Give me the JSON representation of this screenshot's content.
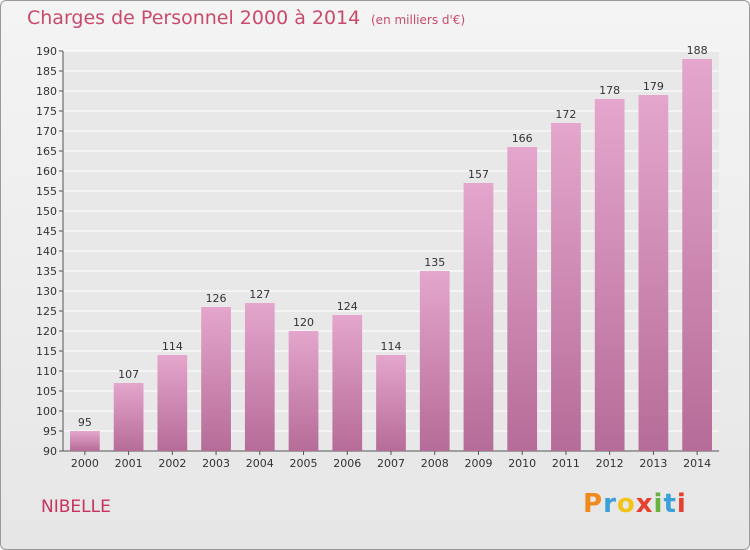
{
  "title": "Charges de Personnel 2000 à 2014",
  "subtitle": "(en milliers d'€)",
  "town": "NIBELLE",
  "logo": {
    "letters": [
      "P",
      "r",
      "o",
      "x",
      "i",
      "t",
      "i"
    ],
    "colors": [
      "#f08a1c",
      "#3aa0d8",
      "#f0c419",
      "#e8402e",
      "#6ab23e",
      "#3aa0d8",
      "#e8402e"
    ]
  },
  "colors": {
    "bar": "#d98fba",
    "bar_dark": "#b96a98",
    "title": "#c94a6a"
  },
  "chart_data": {
    "type": "bar",
    "title": "Charges de Personnel 2000 à 2014",
    "subtitle": "(en milliers d'€)",
    "categories": [
      "2000",
      "2001",
      "2002",
      "2003",
      "2004",
      "2005",
      "2006",
      "2007",
      "2008",
      "2009",
      "2010",
      "2011",
      "2012",
      "2013",
      "2014"
    ],
    "values": [
      95,
      107,
      114,
      126,
      127,
      120,
      124,
      114,
      135,
      157,
      166,
      172,
      178,
      179,
      188
    ],
    "ylim": [
      90,
      190
    ],
    "yticks": [
      90,
      95,
      100,
      105,
      110,
      115,
      120,
      125,
      130,
      135,
      140,
      145,
      150,
      155,
      160,
      165,
      170,
      175,
      180,
      185,
      190
    ],
    "grid": true,
    "xlabel": "",
    "ylabel": ""
  }
}
